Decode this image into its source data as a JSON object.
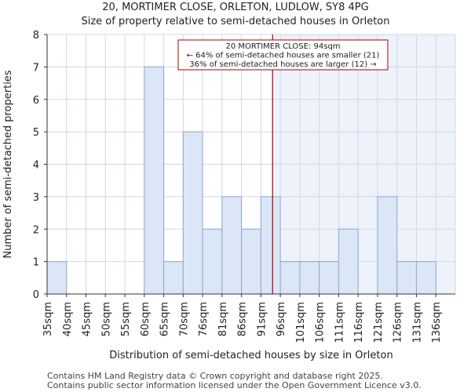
{
  "chart_data": {
    "type": "bar",
    "title": "20, MORTIMER CLOSE, ORLETON, LUDLOW, SY8 4PG",
    "subtitle": "Size of property relative to semi-detached houses in Orleton",
    "xlabel": "Distribution of semi-detached houses by size in Orleton",
    "ylabel": "Number of semi-detached properties",
    "categories": [
      "35sqm",
      "40sqm",
      "45sqm",
      "50sqm",
      "55sqm",
      "60sqm",
      "65sqm",
      "70sqm",
      "76sqm",
      "81sqm",
      "86sqm",
      "91sqm",
      "96sqm",
      "101sqm",
      "106sqm",
      "111sqm",
      "116sqm",
      "121sqm",
      "126sqm",
      "131sqm",
      "136sqm"
    ],
    "values": [
      1,
      0,
      0,
      0,
      0,
      7,
      1,
      5,
      2,
      3,
      2,
      3,
      1,
      1,
      1,
      2,
      0,
      3,
      1,
      1,
      0
    ],
    "ylim": [
      0,
      8
    ],
    "yticks": [
      0,
      1,
      2,
      3,
      4,
      5,
      6,
      7,
      8
    ],
    "grid": true,
    "marker": {
      "value_sqm": 94,
      "position_in_bins": 11.6,
      "line_color": "#aa0000",
      "label_line1": "20 MORTIMER CLOSE: 94sqm",
      "label_line2": "← 64% of semi-detached houses are smaller (21)",
      "label_line3": "36% of semi-detached houses are larger (12) →"
    },
    "colors": {
      "bar_fill": "#dbe6f6",
      "bar_edge": "#8fa8d2",
      "highlight_bg": "#eef2fb",
      "grid": "#cfd8e8"
    }
  },
  "footer": {
    "line1": "Contains HM Land Registry data © Crown copyright and database right 2025.",
    "line2": "Contains public sector information licensed under the Open Government Licence v3.0."
  }
}
